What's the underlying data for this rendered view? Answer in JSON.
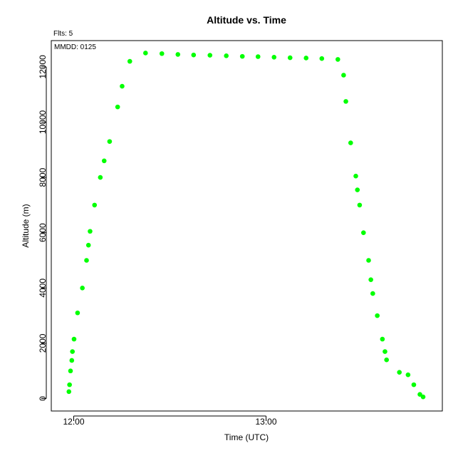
{
  "chart_data": {
    "type": "scatter",
    "title": "Altitude  vs. Time",
    "annotations": [
      "Flts: 5",
      "MMDD: 0125"
    ],
    "xlabel": "Time (UTC)",
    "ylabel": "Altitude (m)",
    "x_unit": "minutes after 12:00 UTC",
    "xlim": [
      -7,
      115
    ],
    "ylim": [
      -450,
      12950
    ],
    "x_ticks": [
      {
        "value": 0,
        "label": "12:00"
      },
      {
        "value": 60,
        "label": "13:00"
      }
    ],
    "y_ticks": [
      0,
      2000,
      4000,
      6000,
      8000,
      10000,
      12000
    ],
    "point_color": "#00ff00",
    "grid": false,
    "legend": "none",
    "points": [
      {
        "x": -1.5,
        "y": 250
      },
      {
        "x": -1.3,
        "y": 500
      },
      {
        "x": -1.0,
        "y": 1000
      },
      {
        "x": -0.6,
        "y": 1380
      },
      {
        "x": -0.4,
        "y": 1700
      },
      {
        "x": 0.1,
        "y": 2150
      },
      {
        "x": 1.2,
        "y": 3100
      },
      {
        "x": 2.7,
        "y": 4000
      },
      {
        "x": 4.0,
        "y": 5000
      },
      {
        "x": 4.6,
        "y": 5550
      },
      {
        "x": 5.1,
        "y": 6050
      },
      {
        "x": 6.5,
        "y": 7000
      },
      {
        "x": 8.3,
        "y": 8000
      },
      {
        "x": 9.5,
        "y": 8600
      },
      {
        "x": 11.2,
        "y": 9300
      },
      {
        "x": 13.7,
        "y": 10550
      },
      {
        "x": 15.1,
        "y": 11300
      },
      {
        "x": 17.5,
        "y": 12200
      },
      {
        "x": 22.4,
        "y": 12500
      },
      {
        "x": 27.5,
        "y": 12480
      },
      {
        "x": 32.5,
        "y": 12450
      },
      {
        "x": 37.4,
        "y": 12430
      },
      {
        "x": 42.5,
        "y": 12420
      },
      {
        "x": 47.6,
        "y": 12400
      },
      {
        "x": 52.6,
        "y": 12380
      },
      {
        "x": 57.5,
        "y": 12370
      },
      {
        "x": 62.5,
        "y": 12350
      },
      {
        "x": 67.5,
        "y": 12330
      },
      {
        "x": 72.5,
        "y": 12320
      },
      {
        "x": 77.4,
        "y": 12300
      },
      {
        "x": 82.4,
        "y": 12270
      },
      {
        "x": 84.2,
        "y": 11700
      },
      {
        "x": 84.9,
        "y": 10750
      },
      {
        "x": 86.4,
        "y": 9250
      },
      {
        "x": 88.0,
        "y": 8050
      },
      {
        "x": 88.5,
        "y": 7550
      },
      {
        "x": 89.2,
        "y": 7000
      },
      {
        "x": 90.4,
        "y": 6000
      },
      {
        "x": 92.0,
        "y": 5000
      },
      {
        "x": 92.7,
        "y": 4300
      },
      {
        "x": 93.3,
        "y": 3800
      },
      {
        "x": 94.7,
        "y": 3000
      },
      {
        "x": 96.3,
        "y": 2150
      },
      {
        "x": 97.1,
        "y": 1700
      },
      {
        "x": 97.6,
        "y": 1400
      },
      {
        "x": 101.6,
        "y": 950
      },
      {
        "x": 104.3,
        "y": 860
      },
      {
        "x": 106.1,
        "y": 500
      },
      {
        "x": 108.0,
        "y": 150
      },
      {
        "x": 109.0,
        "y": 60
      }
    ]
  }
}
